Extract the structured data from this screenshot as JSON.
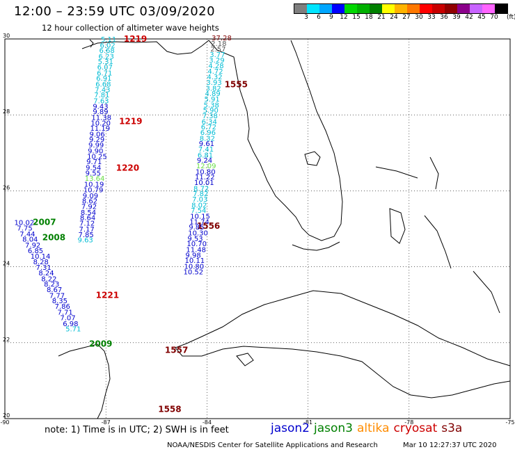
{
  "title": "12:00 – 23:59 UTC 03/09/2020",
  "subtitle": "12 hour collection of altimeter wave heights",
  "scale": {
    "labels": [
      "3",
      "6",
      "9",
      "12",
      "15",
      "18",
      "21",
      "24",
      "27",
      "30",
      "33",
      "36",
      "39",
      "42",
      "45",
      "70"
    ],
    "unit": "(ft)",
    "colors": [
      "#7f7f7f",
      "#00e5ff",
      "#00a6ff",
      "#0000ff",
      "#00d800",
      "#00b000",
      "#008000",
      "#ffff00",
      "#ffb400",
      "#ff7800",
      "#ff0000",
      "#c80000",
      "#900000",
      "#8b008b",
      "#c864ff",
      "#ff64ff",
      "#000000"
    ]
  },
  "map": {
    "lat_labels": [
      "30",
      "28",
      "26",
      "24",
      "22",
      "20"
    ],
    "lon_labels": [
      "-90",
      "-87",
      "-84",
      "-81",
      "-78",
      "-75"
    ]
  },
  "colors": {
    "jason2": "#0000cd",
    "jason3": "#008000",
    "altika": "#ff8c00",
    "cryosat": "#cc0000",
    "s3a": "#800000",
    "cyan": "#00bcd4",
    "ltgreen": "#66dd44",
    "grey": "#555555"
  },
  "time_labels": [
    {
      "text": "1219",
      "sat": "cryosat",
      "lat": 29.93,
      "lon": -86.47
    },
    {
      "text": "1219",
      "sat": "cryosat",
      "lat": 27.76,
      "lon": -86.61
    },
    {
      "text": "1220",
      "sat": "cryosat",
      "lat": 26.53,
      "lon": -86.7
    },
    {
      "text": "1221",
      "sat": "cryosat",
      "lat": 23.18,
      "lon": -87.3
    },
    {
      "text": "1555",
      "sat": "s3a",
      "lat": 28.73,
      "lon": -83.48
    },
    {
      "text": "1556",
      "sat": "s3a",
      "lat": 25.0,
      "lon": -84.3
    },
    {
      "text": "1557",
      "sat": "s3a",
      "lat": 21.73,
      "lon": -85.25
    },
    {
      "text": "1558",
      "sat": "s3a",
      "lat": 20.17,
      "lon": -85.45
    },
    {
      "text": "2007",
      "sat": "jason3",
      "lat": 25.1,
      "lon": -89.17
    },
    {
      "text": "2008",
      "sat": "jason3",
      "lat": 24.7,
      "lon": -88.89
    },
    {
      "text": "2009",
      "sat": "jason3",
      "lat": 21.9,
      "lon": -87.5
    }
  ],
  "tracks": [
    {
      "name": "cryosat-track",
      "points": [
        {
          "v": "5.11",
          "c": "cyan",
          "lat": 29.93,
          "lon": -87.15
        },
        {
          "v": "6.02",
          "c": "cyan",
          "lat": 29.77,
          "lon": -87.18
        },
        {
          "v": "6.68",
          "c": "cyan",
          "lat": 29.63,
          "lon": -87.2
        },
        {
          "v": "6.23",
          "c": "cyan",
          "lat": 29.48,
          "lon": -87.22
        },
        {
          "v": "5.31",
          "c": "cyan",
          "lat": 29.34,
          "lon": -87.24
        },
        {
          "v": "6.07",
          "c": "cyan",
          "lat": 29.19,
          "lon": -87.26
        },
        {
          "v": "6.71",
          "c": "cyan",
          "lat": 29.04,
          "lon": -87.27
        },
        {
          "v": "6.91",
          "c": "cyan",
          "lat": 28.9,
          "lon": -87.29
        },
        {
          "v": "6.68",
          "c": "cyan",
          "lat": 28.75,
          "lon": -87.31
        },
        {
          "v": "7.43",
          "c": "cyan",
          "lat": 28.6,
          "lon": -87.33
        },
        {
          "v": "7.81",
          "c": "cyan",
          "lat": 28.46,
          "lon": -87.35
        },
        {
          "v": "7.63",
          "c": "cyan",
          "lat": 28.31,
          "lon": -87.37
        },
        {
          "v": "9.43",
          "c": "jason2",
          "lat": 28.16,
          "lon": -87.39
        },
        {
          "v": "9.89",
          "c": "jason2",
          "lat": 28.02,
          "lon": -87.39
        },
        {
          "v": "11.38",
          "c": "jason2",
          "lat": 27.87,
          "lon": -87.43
        },
        {
          "v": "10.20",
          "c": "jason2",
          "lat": 27.72,
          "lon": -87.45
        },
        {
          "v": "11.19",
          "c": "jason2",
          "lat": 27.58,
          "lon": -87.47
        },
        {
          "v": "9.06",
          "c": "jason2",
          "lat": 27.43,
          "lon": -87.49
        },
        {
          "v": "9.29",
          "c": "jason2",
          "lat": 27.29,
          "lon": -87.5
        },
        {
          "v": "9.99",
          "c": "jason2",
          "lat": 27.14,
          "lon": -87.52
        },
        {
          "v": "9.90",
          "c": "jason2",
          "lat": 26.99,
          "lon": -87.54
        },
        {
          "v": "10.25",
          "c": "jason2",
          "lat": 26.84,
          "lon": -87.56
        },
        {
          "v": "9.71",
          "c": "jason2",
          "lat": 26.7,
          "lon": -87.58
        },
        {
          "v": "9.54",
          "c": "jason2",
          "lat": 26.55,
          "lon": -87.6
        },
        {
          "v": "9.55",
          "c": "jason2",
          "lat": 26.4,
          "lon": -87.61
        },
        {
          "v": "13.64",
          "c": "ltgreen",
          "lat": 26.26,
          "lon": -87.63
        },
        {
          "v": "10.19",
          "c": "jason2",
          "lat": 26.11,
          "lon": -87.65
        },
        {
          "v": "10.79",
          "c": "jason2",
          "lat": 25.96,
          "lon": -87.67
        },
        {
          "v": "9.09",
          "c": "jason2",
          "lat": 25.81,
          "lon": -87.69
        },
        {
          "v": "8.62",
          "c": "jason2",
          "lat": 25.67,
          "lon": -87.71
        },
        {
          "v": "7.92",
          "c": "jason2",
          "lat": 25.52,
          "lon": -87.73
        },
        {
          "v": "8.54",
          "c": "jason2",
          "lat": 25.37,
          "lon": -87.75
        },
        {
          "v": "8.64",
          "c": "jason2",
          "lat": 25.23,
          "lon": -87.77
        },
        {
          "v": "7.12",
          "c": "jason2",
          "lat": 25.08,
          "lon": -87.79
        },
        {
          "v": "7.17",
          "c": "jason2",
          "lat": 24.93,
          "lon": -87.8
        },
        {
          "v": "7.85",
          "c": "jason2",
          "lat": 24.78,
          "lon": -87.82
        },
        {
          "v": "9.63",
          "c": "cyan",
          "lat": 24.64,
          "lon": -87.84
        }
      ]
    },
    {
      "name": "jason3-track",
      "points": [
        {
          "v": "10.02",
          "c": "jason2",
          "lat": 25.1,
          "lon": -89.72
        },
        {
          "v": "7.75",
          "c": "jason2",
          "lat": 24.95,
          "lon": -89.64
        },
        {
          "v": "7.44",
          "c": "jason2",
          "lat": 24.8,
          "lon": -89.56
        },
        {
          "v": "8.04",
          "c": "jason2",
          "lat": 24.66,
          "lon": -89.48
        },
        {
          "v": "7.92",
          "c": "jason2",
          "lat": 24.51,
          "lon": -89.4
        },
        {
          "v": "6.85",
          "c": "jason2",
          "lat": 24.36,
          "lon": -89.32
        },
        {
          "v": "10.14",
          "c": "jason2",
          "lat": 24.21,
          "lon": -89.24
        },
        {
          "v": "8.28",
          "c": "jason2",
          "lat": 24.07,
          "lon": -89.16
        },
        {
          "v": "7.31",
          "c": "jason2",
          "lat": 23.92,
          "lon": -89.08
        },
        {
          "v": "8.24",
          "c": "jason2",
          "lat": 23.77,
          "lon": -89.0
        },
        {
          "v": "8.22",
          "c": "jason2",
          "lat": 23.62,
          "lon": -88.92
        },
        {
          "v": "8.23",
          "c": "jason2",
          "lat": 23.48,
          "lon": -88.84
        },
        {
          "v": "8.67",
          "c": "jason2",
          "lat": 23.33,
          "lon": -88.76
        },
        {
          "v": "7.77",
          "c": "jason2",
          "lat": 23.18,
          "lon": -88.68
        },
        {
          "v": "8.35",
          "c": "jason2",
          "lat": 23.04,
          "lon": -88.6
        },
        {
          "v": "7.86",
          "c": "jason2",
          "lat": 22.89,
          "lon": -88.52
        },
        {
          "v": "7.71",
          "c": "jason2",
          "lat": 22.74,
          "lon": -88.44
        },
        {
          "v": "7.07",
          "c": "jason2",
          "lat": 22.59,
          "lon": -88.36
        },
        {
          "v": "6.98",
          "c": "jason2",
          "lat": 22.44,
          "lon": -88.28
        },
        {
          "v": "5.71",
          "c": "cyan",
          "lat": 22.3,
          "lon": -88.2
        }
      ]
    },
    {
      "name": "s3a-track",
      "points": [
        {
          "v": "37.28",
          "c": "s3a",
          "lat": 29.96,
          "lon": -83.86
        },
        {
          "v": "2.18",
          "c": "grey",
          "lat": 29.82,
          "lon": -83.88
        },
        {
          "v": "2.57",
          "c": "grey",
          "lat": 29.67,
          "lon": -83.9
        },
        {
          "v": "3.77",
          "c": "cyan",
          "lat": 29.52,
          "lon": -83.92
        },
        {
          "v": "3.29",
          "c": "cyan",
          "lat": 29.38,
          "lon": -83.94
        },
        {
          "v": "4.28",
          "c": "cyan",
          "lat": 29.23,
          "lon": -83.96
        },
        {
          "v": "4.72",
          "c": "cyan",
          "lat": 29.08,
          "lon": -83.98
        },
        {
          "v": "4.32",
          "c": "cyan",
          "lat": 28.94,
          "lon": -84.0
        },
        {
          "v": "3.93",
          "c": "cyan",
          "lat": 28.79,
          "lon": -84.02
        },
        {
          "v": "3.82",
          "c": "cyan",
          "lat": 28.64,
          "lon": -84.04
        },
        {
          "v": "4.89",
          "c": "cyan",
          "lat": 28.5,
          "lon": -84.06
        },
        {
          "v": "5.91",
          "c": "cyan",
          "lat": 28.35,
          "lon": -84.08
        },
        {
          "v": "5.38",
          "c": "cyan",
          "lat": 28.2,
          "lon": -84.1
        },
        {
          "v": "5.90",
          "c": "cyan",
          "lat": 28.06,
          "lon": -84.12
        },
        {
          "v": "7.38",
          "c": "cyan",
          "lat": 27.91,
          "lon": -84.14
        },
        {
          "v": "6.34",
          "c": "cyan",
          "lat": 27.76,
          "lon": -84.16
        },
        {
          "v": "6.72",
          "c": "cyan",
          "lat": 27.62,
          "lon": -84.18
        },
        {
          "v": "6.96",
          "c": "cyan",
          "lat": 27.47,
          "lon": -84.2
        },
        {
          "v": "8.32",
          "c": "cyan",
          "lat": 27.32,
          "lon": -84.22
        },
        {
          "v": "9.61",
          "c": "jason2",
          "lat": 27.18,
          "lon": -84.24
        },
        {
          "v": "7.41",
          "c": "cyan",
          "lat": 27.03,
          "lon": -84.26
        },
        {
          "v": "6.81",
          "c": "cyan",
          "lat": 26.88,
          "lon": -84.28
        },
        {
          "v": "9.24",
          "c": "jason2",
          "lat": 26.74,
          "lon": -84.3
        },
        {
          "v": "12.09",
          "c": "ltgreen",
          "lat": 26.59,
          "lon": -84.32
        },
        {
          "v": "10.80",
          "c": "jason2",
          "lat": 26.44,
          "lon": -84.34
        },
        {
          "v": "11.22",
          "c": "jason2",
          "lat": 26.3,
          "lon": -84.36
        },
        {
          "v": "10.01",
          "c": "jason2",
          "lat": 26.15,
          "lon": -84.38
        },
        {
          "v": "8.72",
          "c": "cyan",
          "lat": 26.0,
          "lon": -84.4
        },
        {
          "v": "7.82",
          "c": "cyan",
          "lat": 25.86,
          "lon": -84.42
        },
        {
          "v": "7.03",
          "c": "cyan",
          "lat": 25.71,
          "lon": -84.44
        },
        {
          "v": "8.02",
          "c": "cyan",
          "lat": 25.56,
          "lon": -84.46
        },
        {
          "v": "7.54",
          "c": "cyan",
          "lat": 25.42,
          "lon": -84.48
        },
        {
          "v": "10.15",
          "c": "jason2",
          "lat": 25.27,
          "lon": -84.5
        },
        {
          "v": "11.74",
          "c": "jason2",
          "lat": 25.12,
          "lon": -84.52
        },
        {
          "v": "9.85",
          "c": "jason2",
          "lat": 24.98,
          "lon": -84.54
        },
        {
          "v": "10.30",
          "c": "jason2",
          "lat": 24.83,
          "lon": -84.56
        },
        {
          "v": "9.53",
          "c": "jason2",
          "lat": 24.68,
          "lon": -84.58
        },
        {
          "v": "10.70",
          "c": "jason2",
          "lat": 24.54,
          "lon": -84.6
        },
        {
          "v": "11.48",
          "c": "jason2",
          "lat": 24.39,
          "lon": -84.62
        },
        {
          "v": "9.98",
          "c": "jason2",
          "lat": 24.24,
          "lon": -84.64
        },
        {
          "v": "10.11",
          "c": "jason2",
          "lat": 24.1,
          "lon": -84.66
        },
        {
          "v": "10.80",
          "c": "jason2",
          "lat": 23.95,
          "lon": -84.68
        },
        {
          "v": "10.52",
          "c": "jason2",
          "lat": 23.8,
          "lon": -84.7
        }
      ]
    }
  ],
  "note": "note: 1) Time is in UTC; 2) SWH is in feet",
  "legend": [
    {
      "label": "jason2",
      "sat": "jason2"
    },
    {
      "label": "jason3",
      "sat": "jason3"
    },
    {
      "label": "altika",
      "sat": "altika"
    },
    {
      "label": "cryosat",
      "sat": "cryosat"
    },
    {
      "label": "s3a",
      "sat": "s3a"
    }
  ],
  "footer": {
    "center": "NOAA/NESDIS Center for Satellite Applications and Research",
    "timestamp": "Mar 10 12:27:37 UTC 2020"
  }
}
